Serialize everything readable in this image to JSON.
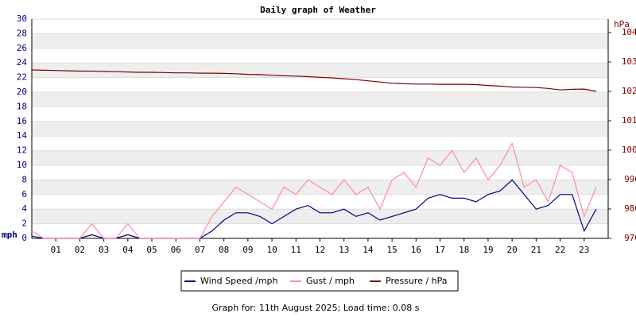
{
  "chart_data": {
    "type": "line",
    "title": "Daily graph of Weather",
    "ylabel": "mph",
    "y2label": "hPa",
    "footer": "Graph for: 11th August 2025; Load time: 0.08 s",
    "xlim": [
      0,
      24
    ],
    "xticks": [
      {
        "value": 1,
        "label": "01"
      },
      {
        "value": 2,
        "label": "02"
      },
      {
        "value": 3,
        "label": "03"
      },
      {
        "value": 4,
        "label": "04"
      },
      {
        "value": 5,
        "label": "05"
      },
      {
        "value": 6,
        "label": "06"
      },
      {
        "value": 7,
        "label": "07"
      },
      {
        "value": 8,
        "label": "08"
      },
      {
        "value": 9,
        "label": "09"
      },
      {
        "value": 10,
        "label": "10"
      },
      {
        "value": 11,
        "label": "11"
      },
      {
        "value": 12,
        "label": "12"
      },
      {
        "value": 13,
        "label": "13"
      },
      {
        "value": 14,
        "label": "14"
      },
      {
        "value": 15,
        "label": "15"
      },
      {
        "value": 16,
        "label": "16"
      },
      {
        "value": 17,
        "label": "17"
      },
      {
        "value": 18,
        "label": "18"
      },
      {
        "value": 19,
        "label": "19"
      },
      {
        "value": 20,
        "label": "20"
      },
      {
        "value": 21,
        "label": "21"
      },
      {
        "value": 22,
        "label": "22"
      },
      {
        "value": 23,
        "label": "23"
      }
    ],
    "ylim": [
      0,
      30
    ],
    "yticks": [
      0,
      2,
      4,
      6,
      8,
      10,
      12,
      14,
      16,
      18,
      20,
      22,
      24,
      26,
      28,
      30
    ],
    "y2lim": [
      970,
      1044.6
    ],
    "y2ticks": [
      970,
      980,
      990,
      1000,
      1010,
      1020,
      1030,
      1040
    ],
    "grid": true,
    "x": [
      0,
      0.5,
      1,
      1.5,
      2,
      2.5,
      3,
      3.5,
      4,
      4.5,
      5,
      5.5,
      6,
      6.5,
      7,
      7.5,
      8,
      8.5,
      9,
      9.5,
      10,
      10.5,
      11,
      11.5,
      12,
      12.5,
      13,
      13.5,
      14,
      14.5,
      15,
      15.5,
      16,
      16.5,
      17,
      17.5,
      18,
      18.5,
      19,
      19.5,
      20,
      20.5,
      21,
      21.5,
      22,
      22.5,
      23,
      23.5
    ],
    "series": [
      {
        "name": "Wind Speed /mph",
        "color": "#000080",
        "values": [
          0.3,
          0,
          0,
          0,
          0,
          0.5,
          0,
          0,
          0.5,
          0,
          0,
          0,
          0,
          0,
          0,
          1,
          2.5,
          3.5,
          3.5,
          3,
          2,
          3,
          4,
          4.5,
          3.5,
          3.5,
          4,
          3,
          3.5,
          2.5,
          3,
          3.5,
          4,
          5.5,
          6,
          5.5,
          5.5,
          5,
          6,
          6.5,
          8,
          6,
          4,
          4.5,
          6,
          6,
          1,
          4
        ]
      },
      {
        "name": "Gust / mph",
        "color": "#ff88aa",
        "values": [
          1,
          0,
          0,
          0,
          0,
          2,
          0,
          0,
          2,
          0,
          0,
          0,
          0,
          0,
          0,
          3,
          5,
          7,
          6,
          5,
          4,
          7,
          6,
          8,
          7,
          6,
          8,
          6,
          7,
          4,
          8,
          9,
          7,
          11,
          10,
          12,
          9,
          11,
          8,
          10,
          13,
          7,
          8,
          5,
          10,
          9,
          3,
          7
        ]
      },
      {
        "name": "Pressure / hPa",
        "color": "#800000",
        "axis": "y2",
        "values": [
          1027.3,
          1027.2,
          1027.1,
          1027.0,
          1026.9,
          1026.9,
          1026.8,
          1026.7,
          1026.6,
          1026.5,
          1026.5,
          1026.4,
          1026.3,
          1026.3,
          1026.2,
          1026.2,
          1026.1,
          1026.0,
          1025.8,
          1025.7,
          1025.5,
          1025.3,
          1025.2,
          1025.0,
          1024.8,
          1024.6,
          1024.3,
          1024.0,
          1023.6,
          1023.2,
          1022.8,
          1022.6,
          1022.5,
          1022.5,
          1022.4,
          1022.4,
          1022.4,
          1022.3,
          1022.0,
          1021.8,
          1021.5,
          1021.4,
          1021.3,
          1021.0,
          1020.5,
          1020.7,
          1020.8,
          1020.0
        ]
      }
    ]
  }
}
